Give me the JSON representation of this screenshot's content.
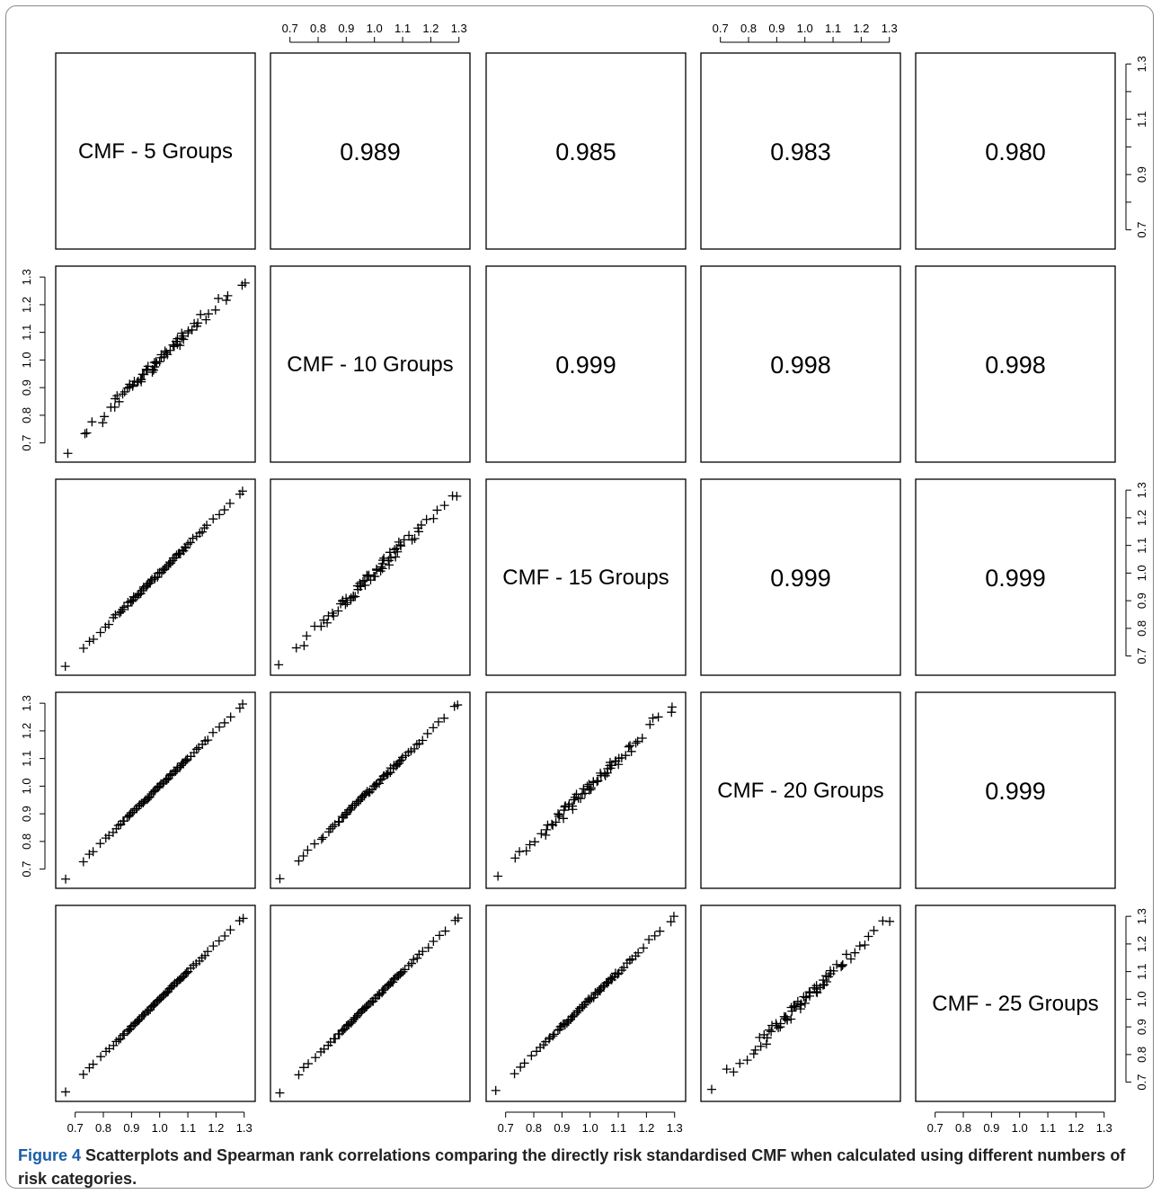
{
  "caption": {
    "label": "Figure 4",
    "text": "Scatterplots and Spearman rank correlations comparing the directly risk standardised CMF when calculated using different numbers of risk categories."
  },
  "chart_data": {
    "type": "scatter",
    "layout": "scatterplot-matrix",
    "variables": [
      "CMF - 5 Groups",
      "CMF - 10 Groups",
      "CMF - 15 Groups",
      "CMF - 20 Groups",
      "CMF - 25 Groups"
    ],
    "tick_labels": [
      "0.7",
      "0.8",
      "0.9",
      "1.0",
      "1.1",
      "1.2",
      "1.3"
    ],
    "tick_values": [
      0.7,
      0.8,
      0.9,
      1.0,
      1.1,
      1.2,
      1.3
    ],
    "sparse_tick_labels": [
      "0.7",
      "0.9",
      "1.1",
      "1.3"
    ],
    "sparse_tick_values": [
      0.7,
      0.9,
      1.1,
      1.3
    ],
    "axis_range": [
      0.65,
      1.32
    ],
    "correlations": [
      {
        "row": 0,
        "col": 1,
        "value": "0.989"
      },
      {
        "row": 0,
        "col": 2,
        "value": "0.985"
      },
      {
        "row": 0,
        "col": 3,
        "value": "0.983"
      },
      {
        "row": 0,
        "col": 4,
        "value": "0.980"
      },
      {
        "row": 1,
        "col": 2,
        "value": "0.999"
      },
      {
        "row": 1,
        "col": 3,
        "value": "0.998"
      },
      {
        "row": 1,
        "col": 4,
        "value": "0.998"
      },
      {
        "row": 2,
        "col": 3,
        "value": "0.999"
      },
      {
        "row": 2,
        "col": 4,
        "value": "0.999"
      },
      {
        "row": 3,
        "col": 4,
        "value": "0.999"
      }
    ],
    "noise_by_offset": {
      "1": 0.018,
      "2": 0.006,
      "3": 0.004,
      "4": 0.003
    },
    "approx_points": [
      0.665,
      0.73,
      0.75,
      0.765,
      0.79,
      0.81,
      0.82,
      0.835,
      0.845,
      0.855,
      0.86,
      0.87,
      0.875,
      0.885,
      0.89,
      0.895,
      0.9,
      0.905,
      0.91,
      0.915,
      0.92,
      0.925,
      0.93,
      0.935,
      0.94,
      0.945,
      0.95,
      0.955,
      0.96,
      0.965,
      0.97,
      0.975,
      0.98,
      0.985,
      0.99,
      0.995,
      1.0,
      1.005,
      1.01,
      1.015,
      1.02,
      1.025,
      1.03,
      1.035,
      1.04,
      1.045,
      1.05,
      1.055,
      1.06,
      1.065,
      1.07,
      1.075,
      1.08,
      1.085,
      1.09,
      1.095,
      1.1,
      1.11,
      1.12,
      1.13,
      1.14,
      1.15,
      1.16,
      1.17,
      1.19,
      1.21,
      1.23,
      1.25,
      1.285,
      1.295
    ],
    "grid": false,
    "legend": "none"
  }
}
